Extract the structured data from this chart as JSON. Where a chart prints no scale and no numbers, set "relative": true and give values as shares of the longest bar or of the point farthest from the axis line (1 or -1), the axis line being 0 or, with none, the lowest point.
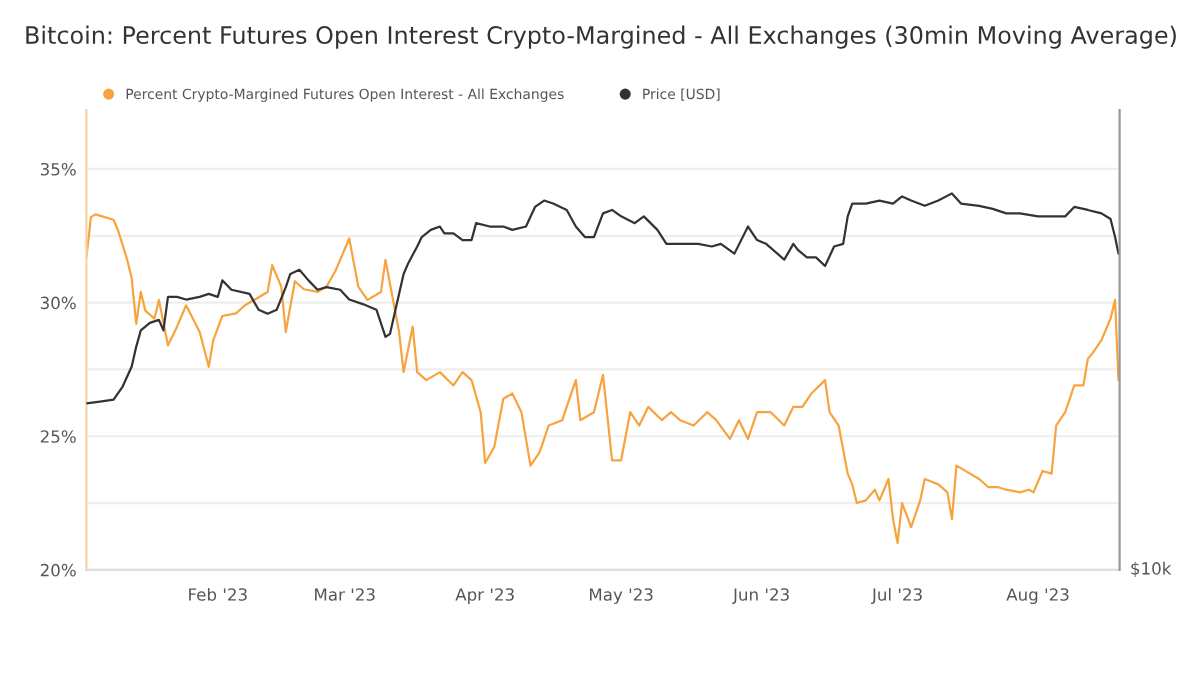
{
  "chart_data": [
    {
      "type": "line",
      "title": "Bitcoin: Percent Futures Open Interest Crypto-Margined - All Exchanges (30min Moving Average)",
      "xlim": [
        "2023-01-03",
        "2023-08-19"
      ],
      "xticks": [
        {
          "value": "2023-02-01",
          "label": "Feb '23"
        },
        {
          "value": "2023-03-01",
          "label": "Mar '23"
        },
        {
          "value": "2023-04-01",
          "label": "Apr '23"
        },
        {
          "value": "2023-05-01",
          "label": "May '23"
        },
        {
          "value": "2023-06-01",
          "label": "Jun '23"
        },
        {
          "value": "2023-07-01",
          "label": "Jul '23"
        },
        {
          "value": "2023-08-01",
          "label": "Aug '23"
        }
      ],
      "ylim": [
        20,
        37.2
      ],
      "yticks": [
        {
          "value": 20,
          "label": "20%"
        },
        {
          "value": 22.5,
          "label": null
        },
        {
          "value": 25,
          "label": "25%"
        },
        {
          "value": 27.5,
          "label": null
        },
        {
          "value": 30,
          "label": "30%"
        },
        {
          "value": 32.5,
          "label": null
        },
        {
          "value": 35,
          "label": "35%"
        }
      ],
      "grid": "y",
      "legend": "top left",
      "marker": "none",
      "line_style": "solid",
      "series": [
        {
          "name": "Percent Crypto-Margined Futures Open Interest - All Exchanges",
          "color": "#f7a440",
          "x": [
            "2023-01-03",
            "2023-01-04",
            "2023-01-05",
            "2023-01-09",
            "2023-01-10",
            "2023-01-12",
            "2023-01-13",
            "2023-01-14",
            "2023-01-15",
            "2023-01-16",
            "2023-01-18",
            "2023-01-19",
            "2023-01-21",
            "2023-01-23",
            "2023-01-25",
            "2023-01-28",
            "2023-01-30",
            "2023-01-31",
            "2023-02-02",
            "2023-02-05",
            "2023-02-07",
            "2023-02-09",
            "2023-02-12",
            "2023-02-13",
            "2023-02-15",
            "2023-02-16",
            "2023-02-18",
            "2023-02-20",
            "2023-02-23",
            "2023-02-25",
            "2023-02-27",
            "2023-03-02",
            "2023-03-04",
            "2023-03-06",
            "2023-03-09",
            "2023-03-10",
            "2023-03-13",
            "2023-03-14",
            "2023-03-16",
            "2023-03-17",
            "2023-03-19",
            "2023-03-22",
            "2023-03-25",
            "2023-03-27",
            "2023-03-29",
            "2023-03-31",
            "2023-04-01",
            "2023-04-03",
            "2023-04-05",
            "2023-04-07",
            "2023-04-09",
            "2023-04-11",
            "2023-04-13",
            "2023-04-15",
            "2023-04-18",
            "2023-04-21",
            "2023-04-22",
            "2023-04-25",
            "2023-04-27",
            "2023-04-29",
            "2023-05-01",
            "2023-05-03",
            "2023-05-05",
            "2023-05-07",
            "2023-05-10",
            "2023-05-12",
            "2023-05-14",
            "2023-05-17",
            "2023-05-20",
            "2023-05-22",
            "2023-05-25",
            "2023-05-27",
            "2023-05-29",
            "2023-05-31",
            "2023-06-03",
            "2023-06-06",
            "2023-06-08",
            "2023-06-10",
            "2023-06-12",
            "2023-06-15",
            "2023-06-16",
            "2023-06-18",
            "2023-06-20",
            "2023-06-21",
            "2023-06-22",
            "2023-06-24",
            "2023-06-26",
            "2023-06-27",
            "2023-06-29",
            "2023-06-30",
            "2023-07-01",
            "2023-07-02",
            "2023-07-04",
            "2023-07-06",
            "2023-07-07",
            "2023-07-10",
            "2023-07-12",
            "2023-07-13",
            "2023-07-14",
            "2023-07-17",
            "2023-07-19",
            "2023-07-21",
            "2023-07-23",
            "2023-07-25",
            "2023-07-28",
            "2023-07-30",
            "2023-07-31",
            "2023-08-02",
            "2023-08-04",
            "2023-08-05",
            "2023-08-07",
            "2023-08-09",
            "2023-08-11",
            "2023-08-12",
            "2023-08-13",
            "2023-08-15",
            "2023-08-17",
            "2023-08-18",
            "2023-08-18T18:00"
          ],
          "values": [
            31.7,
            33.2,
            33.3,
            33.1,
            32.7,
            31.6,
            30.9,
            29.2,
            30.4,
            29.7,
            29.4,
            30.1,
            28.4,
            29.1,
            29.9,
            28.9,
            27.6,
            28.6,
            29.5,
            29.6,
            29.9,
            30.1,
            30.4,
            31.4,
            30.6,
            28.9,
            30.8,
            30.5,
            30.4,
            30.6,
            31.2,
            32.4,
            30.6,
            30.1,
            30.4,
            31.6,
            28.9,
            27.4,
            29.1,
            27.4,
            27.1,
            27.4,
            26.9,
            27.4,
            27.1,
            25.9,
            24.0,
            24.6,
            26.4,
            26.6,
            25.9,
            23.9,
            24.4,
            25.4,
            25.6,
            27.1,
            25.6,
            25.9,
            27.3,
            24.1,
            24.1,
            25.9,
            25.4,
            26.1,
            25.6,
            25.9,
            25.6,
            25.4,
            25.9,
            25.6,
            24.9,
            25.6,
            24.9,
            25.9,
            25.9,
            25.4,
            26.1,
            26.1,
            26.6,
            27.1,
            25.9,
            25.4,
            23.6,
            23.2,
            22.5,
            22.6,
            23.0,
            22.6,
            23.4,
            21.9,
            21.0,
            22.5,
            21.6,
            22.6,
            23.4,
            23.2,
            22.9,
            21.9,
            23.9,
            23.6,
            23.4,
            23.1,
            23.1,
            23.0,
            22.9,
            23.0,
            22.9,
            23.7,
            23.6,
            25.4,
            25.9,
            26.9,
            26.9,
            27.9,
            28.1,
            28.6,
            29.4,
            30.1,
            27.1
          ]
        }
      ]
    },
    {
      "type": "line",
      "relative": true,
      "xlim": [
        "2023-01-03",
        "2023-08-19"
      ],
      "legend": "top",
      "annotations": [
        "$10k"
      ],
      "series": [
        {
          "name": "Price [USD]",
          "color": "#333333",
          "x": [
            "2023-01-03",
            "2023-01-06",
            "2023-01-09",
            "2023-01-11",
            "2023-01-13",
            "2023-01-14",
            "2023-01-15",
            "2023-01-17",
            "2023-01-19",
            "2023-01-20",
            "2023-01-21",
            "2023-01-23",
            "2023-01-25",
            "2023-01-28",
            "2023-01-30",
            "2023-02-01",
            "2023-02-02",
            "2023-02-04",
            "2023-02-08",
            "2023-02-10",
            "2023-02-12",
            "2023-02-14",
            "2023-02-16",
            "2023-02-17",
            "2023-02-19",
            "2023-02-21",
            "2023-02-23",
            "2023-02-25",
            "2023-02-28",
            "2023-03-02",
            "2023-03-05",
            "2023-03-08",
            "2023-03-10",
            "2023-03-11",
            "2023-03-12",
            "2023-03-14",
            "2023-03-15",
            "2023-03-17",
            "2023-03-18",
            "2023-03-20",
            "2023-03-22",
            "2023-03-23",
            "2023-03-25",
            "2023-03-27",
            "2023-03-29",
            "2023-03-30",
            "2023-04-02",
            "2023-04-05",
            "2023-04-07",
            "2023-04-10",
            "2023-04-12",
            "2023-04-14",
            "2023-04-16",
            "2023-04-19",
            "2023-04-21",
            "2023-04-23",
            "2023-04-25",
            "2023-04-27",
            "2023-04-29",
            "2023-05-01",
            "2023-05-04",
            "2023-05-06",
            "2023-05-09",
            "2023-05-11",
            "2023-05-13",
            "2023-05-16",
            "2023-05-18",
            "2023-05-21",
            "2023-05-23",
            "2023-05-26",
            "2023-05-29",
            "2023-05-31",
            "2023-06-02",
            "2023-06-06",
            "2023-06-08",
            "2023-06-09",
            "2023-06-11",
            "2023-06-13",
            "2023-06-15",
            "2023-06-17",
            "2023-06-19",
            "2023-06-20",
            "2023-06-21",
            "2023-06-24",
            "2023-06-27",
            "2023-06-30",
            "2023-07-02",
            "2023-07-04",
            "2023-07-07",
            "2023-07-10",
            "2023-07-13",
            "2023-07-15",
            "2023-07-19",
            "2023-07-22",
            "2023-07-25",
            "2023-07-28",
            "2023-08-01",
            "2023-08-03",
            "2023-08-07",
            "2023-08-09",
            "2023-08-12",
            "2023-08-15",
            "2023-08-17",
            "2023-08-18",
            "2023-08-18T18:00"
          ],
          "values": [
            0.442,
            0.447,
            0.452,
            0.487,
            0.54,
            0.593,
            0.636,
            0.656,
            0.664,
            0.636,
            0.725,
            0.725,
            0.718,
            0.725,
            0.733,
            0.725,
            0.769,
            0.744,
            0.733,
            0.691,
            0.68,
            0.691,
            0.751,
            0.786,
            0.797,
            0.769,
            0.744,
            0.751,
            0.744,
            0.718,
            0.706,
            0.691,
            0.619,
            0.627,
            0.68,
            0.786,
            0.814,
            0.859,
            0.884,
            0.903,
            0.912,
            0.894,
            0.894,
            0.876,
            0.876,
            0.921,
            0.912,
            0.912,
            0.903,
            0.912,
            0.964,
            0.981,
            0.973,
            0.956,
            0.912,
            0.884,
            0.884,
            0.947,
            0.956,
            0.939,
            0.921,
            0.939,
            0.903,
            0.866,
            0.866,
            0.866,
            0.866,
            0.859,
            0.866,
            0.84,
            0.912,
            0.876,
            0.866,
            0.824,
            0.866,
            0.85,
            0.83,
            0.83,
            0.807,
            0.859,
            0.866,
            0.939,
            0.973,
            0.973,
            0.981,
            0.973,
            0.992,
            0.981,
            0.967,
            0.981,
            1,
            0.973,
            0.967,
            0.959,
            0.947,
            0.947,
            0.939,
            0.939,
            0.939,
            0.964,
            0.956,
            0.947,
            0.932,
            0.884,
            0.84
          ]
        }
      ]
    }
  ]
}
